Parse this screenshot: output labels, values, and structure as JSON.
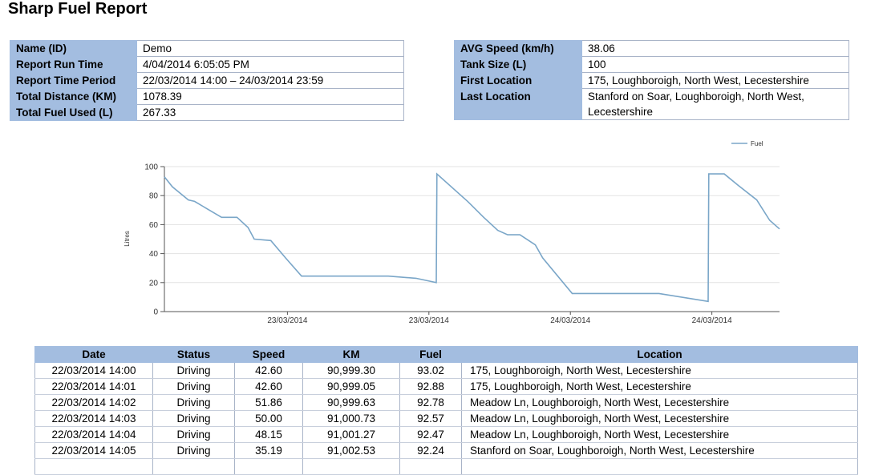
{
  "report": {
    "title": "Sharp Fuel Report"
  },
  "summary_left": [
    {
      "label": "Name (ID)",
      "value": "Demo"
    },
    {
      "label": "Report Run Time",
      "value": "4/04/2014 6:05:05 PM"
    },
    {
      "label": "Report Time Period",
      "value": "22/03/2014 14:00 – 24/03/2014 23:59"
    },
    {
      "label": "Total Distance (KM)",
      "value": "1078.39"
    },
    {
      "label": "Total Fuel Used (L)",
      "value": "267.33"
    }
  ],
  "summary_right": [
    {
      "label": "AVG Speed (km/h)",
      "value": "38.06"
    },
    {
      "label": "Tank Size (L)",
      "value": "100"
    },
    {
      "label": "First Location",
      "value": "175, Loughboroigh, North West, Lecestershire"
    },
    {
      "label": "Last Location",
      "value": "Stanford on Soar, Loughboroigh, North West, Lecestershire"
    }
  ],
  "chart_data": {
    "type": "line",
    "ylabel": "Litres",
    "ylim": [
      0,
      100
    ],
    "yticks": [
      0,
      20,
      40,
      60,
      80,
      100
    ],
    "xlim": [
      0,
      100
    ],
    "xtick_labels": [
      {
        "x": 20,
        "label": "23/03/2014"
      },
      {
        "x": 43,
        "label": "23/03/2014"
      },
      {
        "x": 66,
        "label": "24/03/2014"
      },
      {
        "x": 89,
        "label": "24/03/2014"
      }
    ],
    "grid": true,
    "legend": "top-right",
    "series": [
      {
        "name": "Fuel",
        "color": "#7aa6c8",
        "x": [
          0,
          1.3,
          3.9,
          4.9,
          7.3,
          9.3,
          11.8,
          13.6,
          14.6,
          17.3,
          19.7,
          22.3,
          25.3,
          31.7,
          36.4,
          40.9,
          44.2,
          44.3,
          49.3,
          51.9,
          54.2,
          55.8,
          57.8,
          60.3,
          61.5,
          66.3,
          67.3,
          75.3,
          80.4,
          88.4,
          88.5,
          91.0,
          93.3,
          96.3,
          98.4,
          100
        ],
        "y": [
          93,
          86,
          77,
          76,
          70,
          65,
          65,
          58,
          50,
          49,
          37,
          24.5,
          24.5,
          24.5,
          24.5,
          23,
          20,
          95,
          76,
          65,
          56,
          53,
          53,
          46,
          37,
          12.5,
          12.5,
          12.5,
          12.5,
          7,
          95,
          95,
          87,
          77,
          63,
          57
        ]
      }
    ]
  },
  "table": {
    "headers": [
      "Date",
      "Status",
      "Speed",
      "KM",
      "Fuel",
      "Location"
    ],
    "rows": [
      [
        "22/03/2014 14:00",
        "Driving",
        "42.60",
        "90,999.30",
        "93.02",
        "175, Loughboroigh, North West, Lecestershire"
      ],
      [
        "22/03/2014 14:01",
        "Driving",
        "42.60",
        "90,999.05",
        "92.88",
        "175, Loughboroigh, North West, Lecestershire"
      ],
      [
        "22/03/2014 14:02",
        "Driving",
        "51.86",
        "90,999.63",
        "92.78",
        "Meadow Ln, Loughboroigh, North West, Lecestershire"
      ],
      [
        "22/03/2014 14:03",
        "Driving",
        "50.00",
        "91,000.73",
        "92.57",
        "Meadow Ln, Loughboroigh, North West, Lecestershire"
      ],
      [
        "22/03/2014 14:04",
        "Driving",
        "48.15",
        "91,001.27",
        "92.47",
        "Meadow Ln, Loughboroigh, North West, Lecestershire"
      ],
      [
        "22/03/2014 14:05",
        "Driving",
        "35.19",
        "91,002.53",
        "92.24",
        "Stanford on Soar, Loughboroigh, North West, Lecestershire"
      ]
    ]
  }
}
